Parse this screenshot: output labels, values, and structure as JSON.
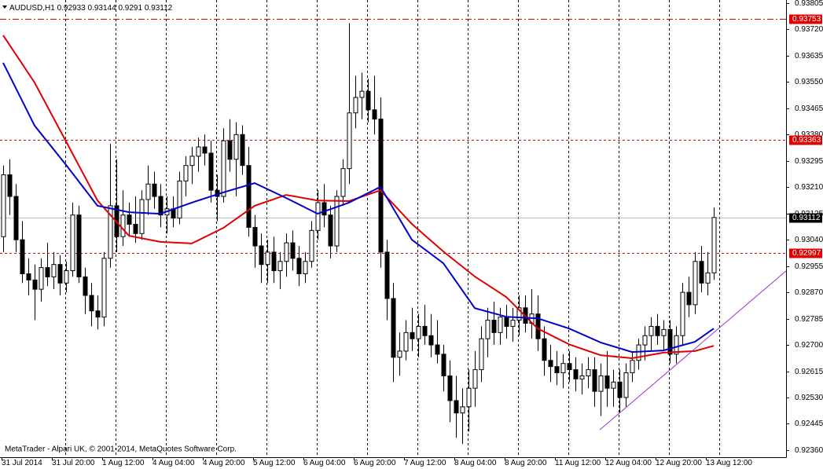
{
  "chart_data": {
    "type": "candlestick",
    "symbol": "AUDUSD,H1",
    "copyright": "MetaTrader - Alpari UK, © 2001-2014, MetaQuotes Software Corp.",
    "categories": [
      "31 Jul 2014",
      null,
      null,
      null,
      null,
      null,
      null,
      null,
      "31 Jul 20:00",
      null,
      null,
      null,
      null,
      null,
      null,
      null,
      "1 Aug 12:00",
      null,
      null,
      null,
      null,
      null,
      null,
      null,
      "4 Aug 04:00",
      null,
      null,
      null,
      null,
      null,
      null,
      null,
      "4 Aug 20:00",
      null,
      null,
      null,
      null,
      null,
      null,
      null,
      "5 Aug 12:00",
      null,
      null,
      null,
      null,
      null,
      null,
      null,
      "6 Aug 04:00",
      null,
      null,
      null,
      null,
      null,
      null,
      null,
      "6 Aug 20:00",
      null,
      null,
      null,
      null,
      null,
      null,
      null,
      "7 Aug 12:00",
      null,
      null,
      null,
      null,
      null,
      null,
      null,
      "8 Aug 04:00",
      null,
      null,
      null,
      null,
      null,
      null,
      null,
      "8 Aug 20:00",
      null,
      null,
      null,
      null,
      null,
      null,
      null,
      "11 Aug 12:00",
      null,
      null,
      null,
      null,
      null,
      null,
      null,
      "12 Aug 04:00",
      null,
      null,
      null,
      null,
      null,
      null,
      null,
      "12 Aug 20:00",
      null,
      null,
      null,
      null,
      null,
      null,
      null,
      "13 Aug 12:00",
      null
    ],
    "open": [
      0.9305,
      0.9325,
      0.9318,
      0.9304,
      0.9293,
      0.9291,
      0.9288,
      0.9295,
      0.9292,
      0.9296,
      0.929,
      0.9294,
      0.9312,
      0.9292,
      0.9286,
      0.9281,
      0.9279,
      0.9298,
      0.9315,
      0.9305,
      0.9312,
      0.9309,
      0.9306,
      0.9317,
      0.9322,
      0.9318,
      0.9312,
      0.9314,
      0.9311,
      0.9323,
      0.9328,
      0.9331,
      0.9334,
      0.9332,
      0.932,
      0.9318,
      0.9336,
      0.933,
      0.9338,
      0.9328,
      0.9308,
      0.9302,
      0.9296,
      0.93,
      0.9294,
      0.9297,
      0.9303,
      0.9298,
      0.9293,
      0.9297,
      0.9307,
      0.9316,
      0.9312,
      0.9302,
      0.9318,
      0.9327,
      0.9345,
      0.935,
      0.9352,
      0.9346,
      0.9343,
      0.93,
      0.9285,
      0.9266,
      0.9268,
      0.9274,
      0.9272,
      0.9276,
      0.9273,
      0.927,
      0.9267,
      0.926,
      0.9252,
      0.9248,
      0.925,
      0.9256,
      0.9262,
      0.9272,
      0.9278,
      0.9274,
      0.9279,
      0.9276,
      0.9278,
      0.9282,
      0.9277,
      0.928,
      0.9272,
      0.9265,
      0.9263,
      0.9261,
      0.9264,
      0.9262,
      0.9259,
      0.926,
      0.9262,
      0.9255,
      0.926,
      0.9256,
      0.9258,
      0.9253,
      0.9261,
      0.9265,
      0.927,
      0.9273,
      0.9276,
      0.9273,
      0.9275,
      0.9267,
      0.9273,
      0.9287,
      0.9283,
      0.9297,
      0.929,
      0.92933
    ],
    "high": [
      0.9328,
      0.933,
      0.9322,
      0.931,
      0.9298,
      0.9296,
      0.9298,
      0.9303,
      0.93,
      0.9299,
      0.9297,
      0.9316,
      0.9315,
      0.9295,
      0.929,
      0.9286,
      0.93,
      0.9335,
      0.933,
      0.932,
      0.9316,
      0.9318,
      0.932,
      0.9328,
      0.9326,
      0.9322,
      0.9318,
      0.9318,
      0.9326,
      0.9331,
      0.9334,
      0.9337,
      0.9338,
      0.9336,
      0.9325,
      0.934,
      0.9343,
      0.9342,
      0.9341,
      0.9334,
      0.9312,
      0.9306,
      0.9304,
      0.9305,
      0.93,
      0.9306,
      0.9307,
      0.9302,
      0.93,
      0.931,
      0.932,
      0.9322,
      0.9315,
      0.932,
      0.933,
      0.9374,
      0.9357,
      0.9358,
      0.9356,
      0.9357,
      0.935,
      0.9304,
      0.929,
      0.9274,
      0.9278,
      0.9282,
      0.928,
      0.9283,
      0.928,
      0.9278,
      0.927,
      0.9265,
      0.926,
      0.9256,
      0.9262,
      0.9268,
      0.9276,
      0.9282,
      0.9284,
      0.9282,
      0.9283,
      0.9282,
      0.9286,
      0.9286,
      0.9288,
      0.9286,
      0.9276,
      0.927,
      0.9268,
      0.9267,
      0.9268,
      0.9266,
      0.9264,
      0.9266,
      0.9266,
      0.9264,
      0.9268,
      0.9262,
      0.9262,
      0.9264,
      0.9268,
      0.9272,
      0.9276,
      0.9279,
      0.928,
      0.9278,
      0.9278,
      0.9276,
      0.929,
      0.9292,
      0.93,
      0.9302,
      0.93,
      0.93144
    ],
    "low": [
      0.93,
      0.9312,
      0.93,
      0.929,
      0.9286,
      0.9278,
      0.9284,
      0.9289,
      0.9288,
      0.9286,
      0.9287,
      0.9292,
      0.929,
      0.928,
      0.9276,
      0.9275,
      0.9276,
      0.9295,
      0.93,
      0.9302,
      0.9305,
      0.9303,
      0.9304,
      0.9312,
      0.9314,
      0.9308,
      0.9306,
      0.9308,
      0.9309,
      0.9318,
      0.9322,
      0.9326,
      0.9328,
      0.9316,
      0.931,
      0.9316,
      0.9326,
      0.9318,
      0.9325,
      0.9305,
      0.9295,
      0.929,
      0.929,
      0.929,
      0.9288,
      0.9292,
      0.9294,
      0.9289,
      0.929,
      0.9295,
      0.9304,
      0.9308,
      0.9298,
      0.93,
      0.9315,
      0.9322,
      0.934,
      0.9343,
      0.9342,
      0.9338,
      0.9295,
      0.9278,
      0.9258,
      0.926,
      0.9265,
      0.9268,
      0.9266,
      0.927,
      0.9266,
      0.9264,
      0.9255,
      0.9245,
      0.924,
      0.9238,
      0.9242,
      0.925,
      0.9258,
      0.9266,
      0.927,
      0.927,
      0.9272,
      0.9271,
      0.9273,
      0.9274,
      0.9272,
      0.9268,
      0.926,
      0.9258,
      0.9257,
      0.9256,
      0.9258,
      0.9255,
      0.9254,
      0.9256,
      0.925,
      0.9247,
      0.925,
      0.925,
      0.9248,
      0.925,
      0.9258,
      0.9262,
      0.9265,
      0.9268,
      0.927,
      0.9268,
      0.9264,
      0.9264,
      0.927,
      0.9279,
      0.928,
      0.9287,
      0.9286,
      0.9291
    ],
    "close": [
      0.9325,
      0.9318,
      0.9304,
      0.9293,
      0.9291,
      0.9288,
      0.9295,
      0.9292,
      0.9296,
      0.929,
      0.9294,
      0.9312,
      0.9292,
      0.9286,
      0.9281,
      0.9279,
      0.9298,
      0.9315,
      0.9305,
      0.9312,
      0.9309,
      0.9306,
      0.9317,
      0.9322,
      0.9318,
      0.9312,
      0.9314,
      0.9311,
      0.9323,
      0.9328,
      0.9331,
      0.9334,
      0.9332,
      0.932,
      0.9318,
      0.9336,
      0.933,
      0.9338,
      0.9328,
      0.9308,
      0.9302,
      0.9296,
      0.93,
      0.9294,
      0.9297,
      0.9303,
      0.9298,
      0.9293,
      0.9297,
      0.9307,
      0.9316,
      0.9312,
      0.9302,
      0.9318,
      0.9327,
      0.9345,
      0.935,
      0.9352,
      0.9346,
      0.9343,
      0.93,
      0.9285,
      0.9266,
      0.9268,
      0.9274,
      0.9272,
      0.9276,
      0.9273,
      0.927,
      0.9267,
      0.926,
      0.9252,
      0.9248,
      0.925,
      0.9256,
      0.9262,
      0.9272,
      0.9278,
      0.9274,
      0.9279,
      0.9276,
      0.9278,
      0.9282,
      0.9277,
      0.928,
      0.9272,
      0.9265,
      0.9263,
      0.9261,
      0.9264,
      0.9262,
      0.9259,
      0.926,
      0.9262,
      0.9255,
      0.926,
      0.9256,
      0.9258,
      0.9253,
      0.9261,
      0.9265,
      0.927,
      0.9273,
      0.9276,
      0.9273,
      0.9275,
      0.9267,
      0.9273,
      0.9287,
      0.9283,
      0.9297,
      0.929,
      0.92933,
      0.93112
    ],
    "series": [
      {
        "color": "#e00000",
        "x": [
          0,
          5,
          10,
          15,
          20,
          25,
          30,
          35,
          40,
          45,
          50,
          55,
          60,
          65,
          70,
          75,
          80,
          85,
          90,
          95,
          100,
          105,
          110,
          113
        ],
        "values": [
          0.93701,
          0.93548,
          0.93358,
          0.93167,
          0.93053,
          0.93033,
          0.93028,
          0.93078,
          0.9315,
          0.93185,
          0.93167,
          0.93165,
          0.932,
          0.93091,
          0.93002,
          0.92921,
          0.92855,
          0.92753,
          0.92702,
          0.92667,
          0.92657,
          0.92675,
          0.9268,
          0.92697
        ]
      },
      {
        "color": "#0000cc",
        "x": [
          0,
          5,
          10,
          15,
          20,
          25,
          30,
          35,
          40,
          45,
          50,
          55,
          60,
          65,
          70,
          75,
          80,
          85,
          90,
          95,
          100,
          105,
          110,
          113
        ],
        "values": [
          0.93612,
          0.93409,
          0.93282,
          0.9315,
          0.93129,
          0.93124,
          0.9316,
          0.93193,
          0.93223,
          0.93175,
          0.93124,
          0.9316,
          0.93211,
          0.9304,
          0.92964,
          0.92819,
          0.92791,
          0.92786,
          0.92753,
          0.92708,
          0.92677,
          0.92682,
          0.9271,
          0.92753
        ]
      }
    ],
    "trendline": {
      "color": "#9933cc",
      "x": [
        94.9,
        124.5
      ],
      "values": [
        0.92426,
        0.92939
      ]
    },
    "hlines": [
      {
        "value": 0.93753,
        "style": "dashdot",
        "color": "#e00000"
      },
      {
        "value": 0.93363,
        "style": "dotted",
        "color": "#e00000"
      },
      {
        "value": 0.92997,
        "style": "dotted",
        "color": "#e00000"
      }
    ],
    "xlim": [
      -0.5,
      124.5
    ],
    "ylim": [
      0.92337,
      0.93815
    ],
    "yticks": [
      0.93805,
      {
        "value": 0.9372,
        "label": "0.93720"
      },
      0.93635,
      {
        "value": 0.9355,
        "label": "0.93550"
      },
      0.93465,
      {
        "value": 0.9338,
        "label": "0.93380"
      },
      0.93295,
      {
        "value": 0.9321,
        "label": "0.93210"
      },
      0.93125,
      {
        "value": 0.9304,
        "label": "0.93040"
      },
      0.92955,
      {
        "value": 0.9287,
        "label": "0.92870"
      },
      0.92785,
      {
        "value": 0.927,
        "label": "0.92700"
      },
      0.92615,
      {
        "value": 0.9253,
        "label": "0.92530"
      },
      0.92445,
      {
        "value": 0.9236,
        "label": "0.92360"
      }
    ],
    "grid": true
  }
}
